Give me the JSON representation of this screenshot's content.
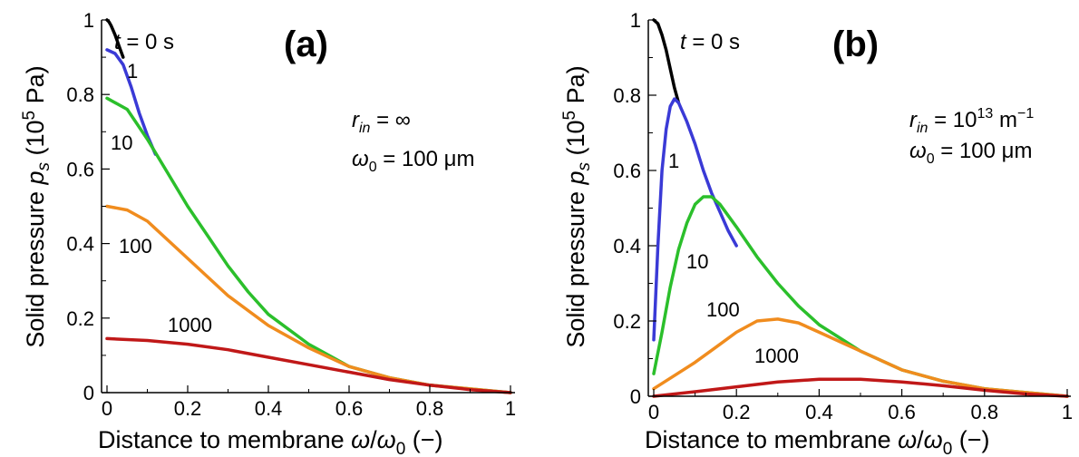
{
  "chart_data": [
    {
      "type": "line",
      "panel_label": "(a)",
      "xlabel": "Distance to membrane ω/ω0 (−)",
      "ylabel": "Solid pressure ps (10^5 Pa)",
      "xlim": [
        0,
        1
      ],
      "ylim": [
        0,
        1
      ],
      "xticks": [
        "0",
        "0.2",
        "0.4",
        "0.6",
        "0.8",
        "1"
      ],
      "yticks": [
        "0",
        "0.2",
        "0.4",
        "0.6",
        "0.8",
        "1"
      ],
      "grid": false,
      "annotations": [
        "r_in = ∞",
        "ω0 = 100 μm"
      ],
      "series": [
        {
          "name": "t = 0 s",
          "color": "#000000",
          "x": [
            0,
            0.005,
            0.01,
            0.02,
            0.03,
            0.04
          ],
          "y": [
            1.0,
            0.995,
            0.985,
            0.96,
            0.93,
            0.9
          ]
        },
        {
          "name": "1",
          "color": "#3a3ad6",
          "x": [
            0,
            0.02,
            0.04,
            0.06,
            0.08,
            0.1,
            0.12
          ],
          "y": [
            0.92,
            0.91,
            0.88,
            0.82,
            0.75,
            0.69,
            0.64
          ]
        },
        {
          "name": "10",
          "color": "#2bbf2b",
          "x": [
            0,
            0.05,
            0.1,
            0.15,
            0.2,
            0.25,
            0.3,
            0.35,
            0.4,
            0.5,
            0.6,
            0.7,
            0.8,
            0.9,
            1.0
          ],
          "y": [
            0.79,
            0.76,
            0.68,
            0.59,
            0.5,
            0.42,
            0.34,
            0.27,
            0.21,
            0.13,
            0.07,
            0.04,
            0.02,
            0.01,
            0.0
          ]
        },
        {
          "name": "100",
          "color": "#f08c1e",
          "x": [
            0,
            0.05,
            0.1,
            0.15,
            0.2,
            0.25,
            0.3,
            0.35,
            0.4,
            0.5,
            0.6,
            0.7,
            0.8,
            0.9,
            1.0
          ],
          "y": [
            0.5,
            0.49,
            0.46,
            0.41,
            0.36,
            0.31,
            0.26,
            0.22,
            0.18,
            0.12,
            0.07,
            0.04,
            0.02,
            0.01,
            0.0
          ]
        },
        {
          "name": "1000",
          "color": "#c01818",
          "x": [
            0,
            0.1,
            0.2,
            0.3,
            0.4,
            0.5,
            0.6,
            0.7,
            0.8,
            0.9,
            1.0
          ],
          "y": [
            0.145,
            0.14,
            0.13,
            0.115,
            0.095,
            0.075,
            0.055,
            0.035,
            0.02,
            0.008,
            0.0
          ]
        }
      ]
    },
    {
      "type": "line",
      "panel_label": "(b)",
      "xlabel": "Distance to membrane ω/ω0 (−)",
      "ylabel": "Solid pressure ps (10^5 Pa)",
      "xlim": [
        0,
        1
      ],
      "ylim": [
        0,
        1
      ],
      "xticks": [
        "0",
        "0.2",
        "0.4",
        "0.6",
        "0.8",
        "1"
      ],
      "yticks": [
        "0",
        "0.2",
        "0.4",
        "0.6",
        "0.8",
        "1"
      ],
      "grid": false,
      "annotations": [
        "r_in = 10^13 m^−1",
        "ω0 = 100 μm"
      ],
      "series": [
        {
          "name": "t = 0 s",
          "color": "#000000",
          "x": [
            0,
            0.01,
            0.02,
            0.03,
            0.04,
            0.05,
            0.06
          ],
          "y": [
            1.0,
            0.99,
            0.96,
            0.92,
            0.87,
            0.82,
            0.78
          ]
        },
        {
          "name": "1",
          "color": "#3a3ad6",
          "x": [
            0,
            0.01,
            0.02,
            0.03,
            0.04,
            0.05,
            0.06,
            0.08,
            0.1,
            0.12,
            0.14,
            0.16,
            0.18,
            0.2
          ],
          "y": [
            0.15,
            0.4,
            0.6,
            0.71,
            0.77,
            0.79,
            0.78,
            0.73,
            0.67,
            0.6,
            0.54,
            0.49,
            0.44,
            0.4
          ]
        },
        {
          "name": "10",
          "color": "#2bbf2b",
          "x": [
            0,
            0.02,
            0.04,
            0.06,
            0.08,
            0.1,
            0.12,
            0.14,
            0.16,
            0.2,
            0.25,
            0.3,
            0.35,
            0.4,
            0.5,
            0.6,
            0.7,
            0.8,
            0.9,
            1.0
          ],
          "y": [
            0.06,
            0.17,
            0.29,
            0.39,
            0.46,
            0.51,
            0.53,
            0.53,
            0.51,
            0.45,
            0.37,
            0.3,
            0.24,
            0.19,
            0.12,
            0.07,
            0.04,
            0.02,
            0.01,
            0.0
          ]
        },
        {
          "name": "100",
          "color": "#f08c1e",
          "x": [
            0,
            0.05,
            0.1,
            0.15,
            0.2,
            0.25,
            0.3,
            0.35,
            0.4,
            0.5,
            0.6,
            0.7,
            0.8,
            0.9,
            1.0
          ],
          "y": [
            0.02,
            0.055,
            0.09,
            0.13,
            0.17,
            0.2,
            0.205,
            0.195,
            0.17,
            0.12,
            0.07,
            0.04,
            0.02,
            0.01,
            0.0
          ]
        },
        {
          "name": "1000",
          "color": "#c01818",
          "x": [
            0,
            0.1,
            0.2,
            0.3,
            0.4,
            0.5,
            0.6,
            0.7,
            0.8,
            0.9,
            1.0
          ],
          "y": [
            0.0,
            0.012,
            0.025,
            0.038,
            0.045,
            0.045,
            0.038,
            0.028,
            0.016,
            0.006,
            0.0
          ]
        }
      ]
    }
  ]
}
